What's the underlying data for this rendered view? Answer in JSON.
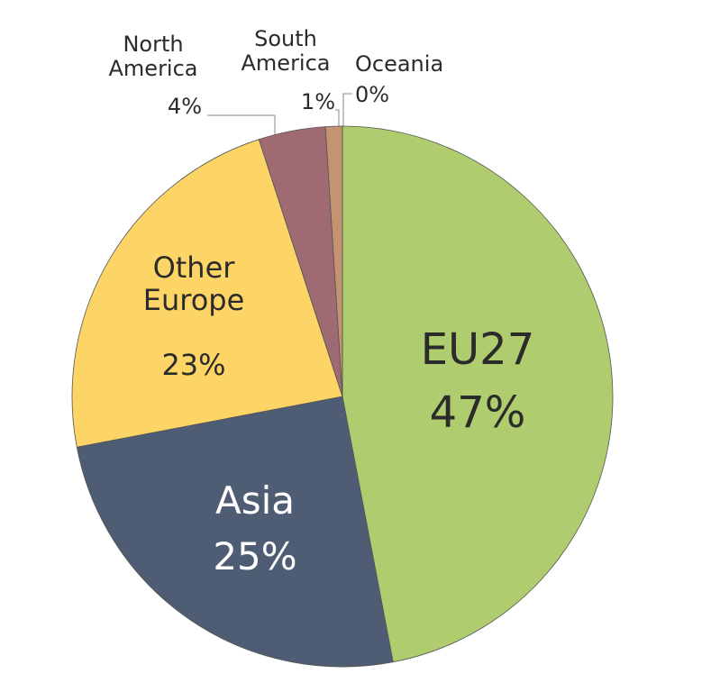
{
  "chart_data": {
    "type": "pie",
    "categories": [
      "EU27",
      "Asia",
      "Other Europe",
      "North America",
      "South America",
      "Oceania"
    ],
    "values": [
      47,
      25,
      23,
      4,
      1,
      0
    ],
    "value_labels": [
      "47%",
      "25%",
      "23%",
      "4%",
      "1%",
      "0%"
    ],
    "colors": [
      "#afcc6e",
      "#4e5d74",
      "#fdd466",
      "#a06a72",
      "#c39372",
      "#efe0c4"
    ]
  }
}
